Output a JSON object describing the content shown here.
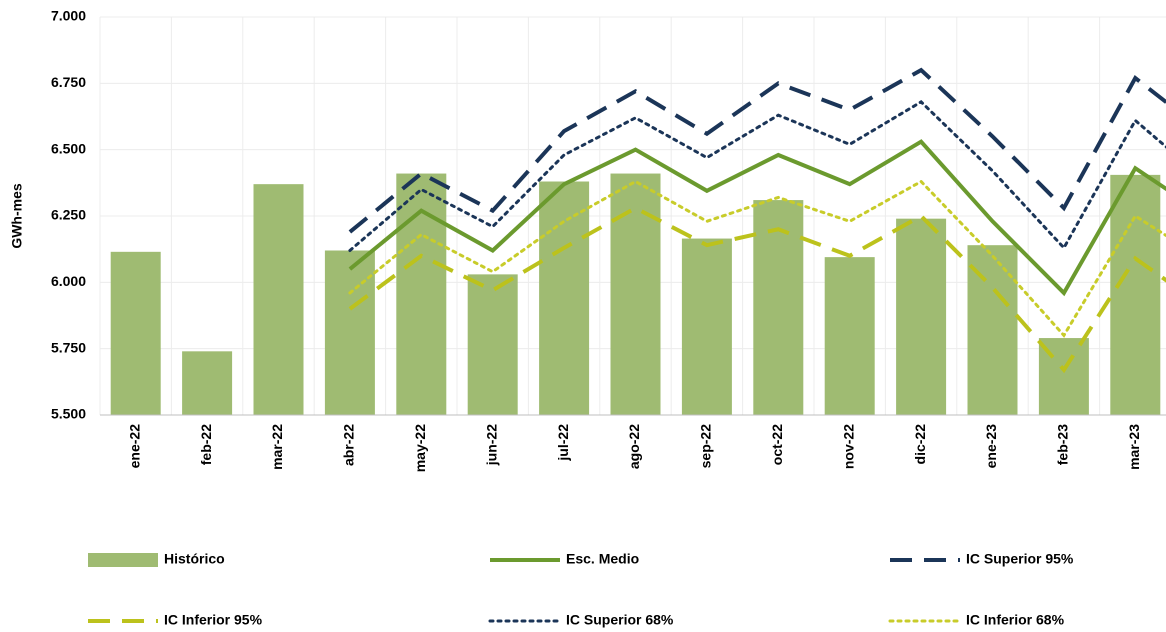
{
  "chart_data": {
    "type": "bar",
    "y_label": "GWh-mes",
    "categories": [
      "ene-22",
      "feb-22",
      "mar-22",
      "abr-22",
      "may-22",
      "jun-22",
      "jul-22",
      "ago-22",
      "sep-22",
      "oct-22",
      "nov-22",
      "dic-22",
      "ene-23",
      "feb-23",
      "mar-23",
      null
    ],
    "series": [
      {
        "name": "Histórico",
        "type": "bar",
        "color": "#9fbb72",
        "values": [
          6115,
          5740,
          6370,
          6120,
          6410,
          6030,
          6380,
          6410,
          6165,
          6310,
          6095,
          6240,
          6140,
          5790,
          6405,
          null
        ]
      },
      {
        "name": "Esc. Medio",
        "type": "line",
        "style": "solid",
        "color": "#6b9a2e",
        "values": [
          null,
          null,
          null,
          6050,
          6270,
          6120,
          6370,
          6500,
          6345,
          6480,
          6370,
          6530,
          6230,
          5960,
          6430,
          6250
        ]
      },
      {
        "name": "IC Superior 95%",
        "type": "line",
        "style": "dashed",
        "color": "#1b3558",
        "values": [
          null,
          null,
          null,
          6190,
          6410,
          6270,
          6570,
          6720,
          6560,
          6750,
          6650,
          6800,
          6550,
          6280,
          6770,
          6560
        ]
      },
      {
        "name": "IC Inferior 95%",
        "type": "line",
        "style": "dashed",
        "color": "#bcc21c",
        "values": [
          null,
          null,
          null,
          5900,
          6100,
          5970,
          6130,
          6280,
          6140,
          6200,
          6100,
          6250,
          5980,
          5670,
          6090,
          5900
        ]
      },
      {
        "name": "IC Superior 68%",
        "type": "line",
        "style": "dotted",
        "color": "#1b3558",
        "values": [
          null,
          null,
          null,
          6120,
          6350,
          6210,
          6480,
          6620,
          6470,
          6630,
          6520,
          6680,
          6420,
          6130,
          6610,
          6380
        ]
      },
      {
        "name": "IC Inferior 68%",
        "type": "line",
        "style": "dotted",
        "color": "#c8cc2a",
        "values": [
          null,
          null,
          null,
          5960,
          6180,
          6040,
          6230,
          6380,
          6230,
          6320,
          6230,
          6380,
          6100,
          5800,
          6250,
          6080
        ]
      }
    ],
    "ylim": [
      5500,
      7000
    ],
    "yticks": [
      {
        "value": 5500,
        "label": "5.500"
      },
      {
        "value": 5750,
        "label": "5.750"
      },
      {
        "value": 6000,
        "label": "6.000"
      },
      {
        "value": 6250,
        "label": "6.250"
      },
      {
        "value": 6500,
        "label": "6.500"
      },
      {
        "value": 6750,
        "label": "6.750"
      },
      {
        "value": 7000,
        "label": "7.000"
      }
    ],
    "grid": true
  }
}
